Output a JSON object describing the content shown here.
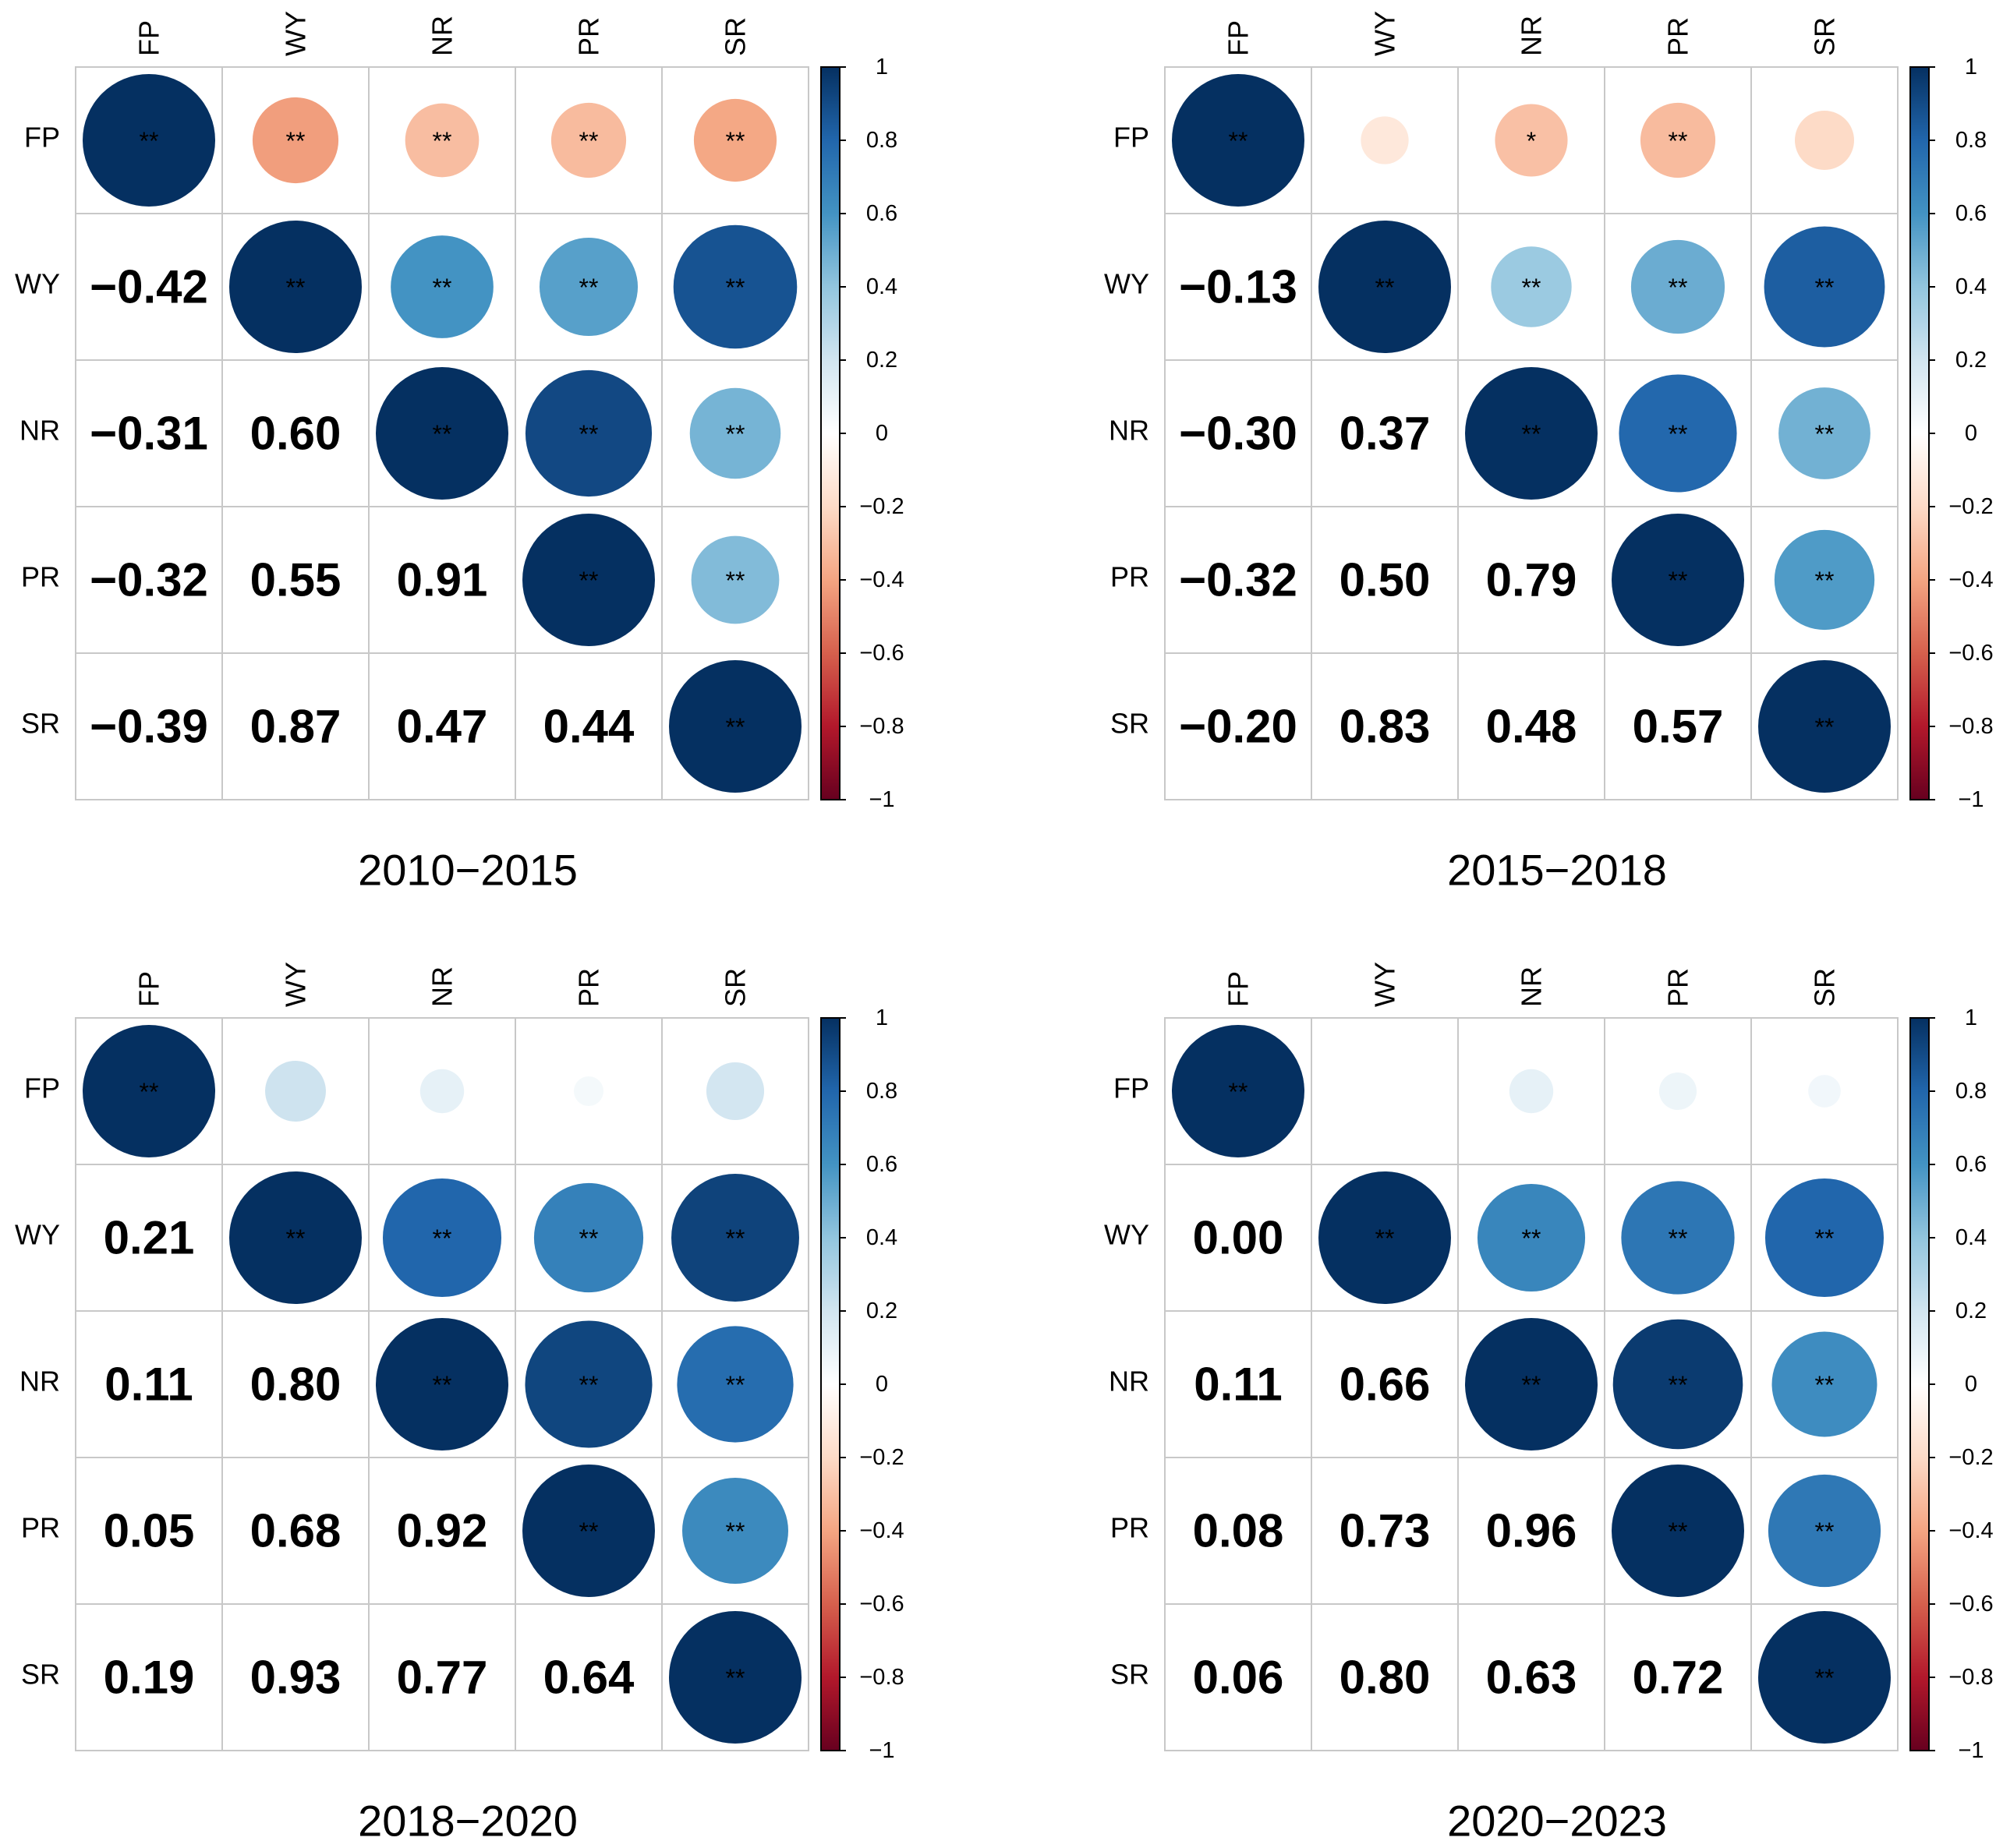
{
  "chart_data": [
    {
      "type": "heatmap",
      "title": "2010−2015",
      "variables": [
        "FP",
        "WY",
        "NR",
        "PR",
        "SR"
      ],
      "lower_values": [
        [
          "−0.42"
        ],
        [
          "−0.31",
          "0.60"
        ],
        [
          "−0.32",
          "0.55",
          "0.91"
        ],
        [
          "−0.39",
          "0.87",
          "0.47",
          "0.44"
        ]
      ],
      "upper_values": [
        [
          0.42,
          0.31,
          0.32,
          0.39
        ],
        [
          0.6,
          0.55,
          0.87
        ],
        [
          0.91,
          0.47
        ],
        [
          0.44
        ]
      ],
      "upper_sign": [
        [
          -1,
          -1,
          -1,
          -1
        ],
        [
          1,
          1,
          1
        ],
        [
          1,
          1
        ],
        [
          1
        ]
      ],
      "significance": [
        [
          "**",
          "**",
          "**",
          "**"
        ],
        [
          "**",
          "**",
          "**"
        ],
        [
          "**",
          "**"
        ],
        [
          "**"
        ]
      ],
      "diagonal_significance": [
        "**",
        "**",
        "**",
        "**",
        "**"
      ],
      "colorbar_ticks": [
        "1",
        "0.8",
        "0.6",
        "0.4",
        "0.2",
        "0",
        "−0.2",
        "−0.4",
        "−0.6",
        "−0.8",
        "−1"
      ],
      "color_range": [
        -1,
        1
      ]
    },
    {
      "type": "heatmap",
      "title": "2015−2018",
      "variables": [
        "FP",
        "WY",
        "NR",
        "PR",
        "SR"
      ],
      "lower_values": [
        [
          "−0.13"
        ],
        [
          "−0.30",
          "0.37"
        ],
        [
          "−0.32",
          "0.50",
          "0.79"
        ],
        [
          "−0.20",
          "0.83",
          "0.48",
          "0.57"
        ]
      ],
      "upper_values": [
        [
          0.13,
          0.3,
          0.32,
          0.2
        ],
        [
          0.37,
          0.5,
          0.83
        ],
        [
          0.79,
          0.48
        ],
        [
          0.57
        ]
      ],
      "upper_sign": [
        [
          -1,
          -1,
          -1,
          -1
        ],
        [
          1,
          1,
          1
        ],
        [
          1,
          1
        ],
        [
          1
        ]
      ],
      "significance": [
        [
          "",
          "*",
          "**",
          ""
        ],
        [
          "**",
          "**",
          "**"
        ],
        [
          "**",
          "**"
        ],
        [
          "**"
        ]
      ],
      "diagonal_significance": [
        "**",
        "**",
        "**",
        "**",
        "**"
      ],
      "colorbar_ticks": [
        "1",
        "0.8",
        "0.6",
        "0.4",
        "0.2",
        "0",
        "−0.2",
        "−0.4",
        "−0.6",
        "−0.8",
        "−1"
      ],
      "color_range": [
        -1,
        1
      ]
    },
    {
      "type": "heatmap",
      "title": "2018−2020",
      "variables": [
        "FP",
        "WY",
        "NR",
        "PR",
        "SR"
      ],
      "lower_values": [
        [
          "0.21"
        ],
        [
          "0.11",
          "0.80"
        ],
        [
          "0.05",
          "0.68",
          "0.92"
        ],
        [
          "0.19",
          "0.93",
          "0.77",
          "0.64"
        ]
      ],
      "upper_values": [
        [
          0.21,
          0.11,
          0.05,
          0.19
        ],
        [
          0.8,
          0.68,
          0.93
        ],
        [
          0.92,
          0.77
        ],
        [
          0.64
        ]
      ],
      "upper_sign": [
        [
          1,
          1,
          1,
          1
        ],
        [
          1,
          1,
          1
        ],
        [
          1,
          1
        ],
        [
          1
        ]
      ],
      "significance": [
        [
          "",
          "",
          "",
          ""
        ],
        [
          "**",
          "**",
          "**"
        ],
        [
          "**",
          "**"
        ],
        [
          "**"
        ]
      ],
      "diagonal_significance": [
        "**",
        "**",
        "**",
        "**",
        "**"
      ],
      "colorbar_ticks": [
        "1",
        "0.8",
        "0.6",
        "0.4",
        "0.2",
        "0",
        "−0.2",
        "−0.4",
        "−0.6",
        "−0.8",
        "−1"
      ],
      "color_range": [
        -1,
        1
      ]
    },
    {
      "type": "heatmap",
      "title": "2020−2023",
      "variables": [
        "FP",
        "WY",
        "NR",
        "PR",
        "SR"
      ],
      "lower_values": [
        [
          "0.00"
        ],
        [
          "0.11",
          "0.66"
        ],
        [
          "0.08",
          "0.73",
          "0.96"
        ],
        [
          "0.06",
          "0.80",
          "0.63",
          "0.72"
        ]
      ],
      "upper_values": [
        [
          0.0,
          0.11,
          0.08,
          0.06
        ],
        [
          0.66,
          0.73,
          0.8
        ],
        [
          0.96,
          0.63
        ],
        [
          0.72
        ]
      ],
      "upper_sign": [
        [
          1,
          1,
          1,
          1
        ],
        [
          1,
          1,
          1
        ],
        [
          1,
          1
        ],
        [
          1
        ]
      ],
      "significance": [
        [
          "",
          "",
          "",
          ""
        ],
        [
          "**",
          "**",
          "**"
        ],
        [
          "**",
          "**"
        ],
        [
          "**"
        ]
      ],
      "diagonal_significance": [
        "**",
        "**",
        "**",
        "**",
        "**"
      ],
      "colorbar_ticks": [
        "1",
        "0.8",
        "0.6",
        "0.4",
        "0.2",
        "0",
        "−0.2",
        "−0.4",
        "−0.6",
        "−0.8",
        "−1"
      ],
      "color_range": [
        -1,
        1
      ]
    }
  ]
}
